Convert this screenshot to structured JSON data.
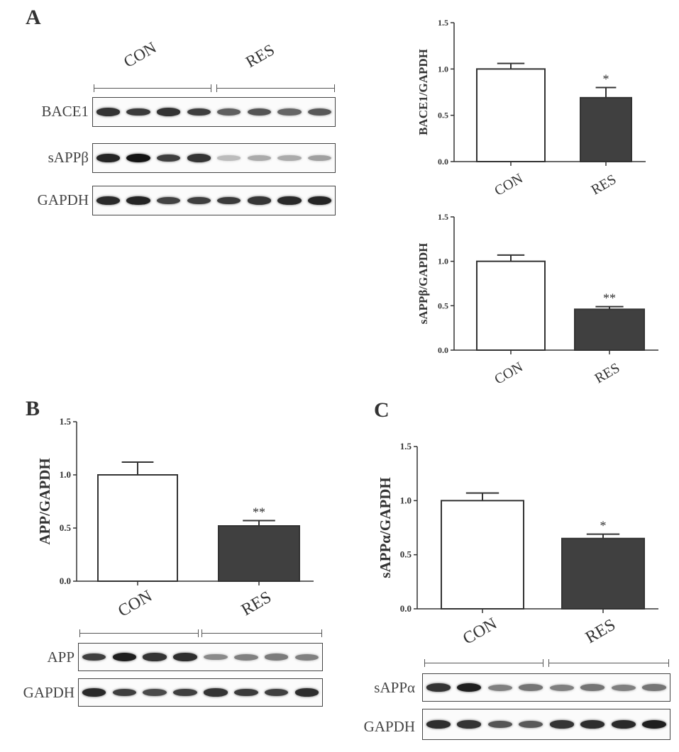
{
  "panels": {
    "a": "A",
    "b": "B",
    "c": "C"
  },
  "groups": [
    "CON",
    "RES"
  ],
  "colors": {
    "con_bar": "#ffffff",
    "res_bar": "#404040",
    "axis": "#333333"
  },
  "chart_data": [
    {
      "type": "bar",
      "ylabel": "BACE1/GAPDH",
      "categories": [
        "CON",
        "RES"
      ],
      "values": [
        1.0,
        0.69
      ],
      "errors": [
        0.06,
        0.11
      ],
      "significance": [
        "",
        "*"
      ],
      "ylim": [
        0,
        1.5
      ],
      "yticks": [
        "0.0",
        "0.5",
        "1.0",
        "1.5"
      ]
    },
    {
      "type": "bar",
      "ylabel": "sAPPβ/GAPDH",
      "categories": [
        "CON",
        "RES"
      ],
      "values": [
        1.0,
        0.46
      ],
      "errors": [
        0.07,
        0.03
      ],
      "significance": [
        "",
        "**"
      ],
      "ylim": [
        0,
        1.5
      ],
      "yticks": [
        "0.0",
        "0.5",
        "1.0",
        "1.5"
      ]
    },
    {
      "type": "bar",
      "ylabel": "APP/GAPDH",
      "categories": [
        "CON",
        "RES"
      ],
      "values": [
        1.0,
        0.52
      ],
      "errors": [
        0.12,
        0.05
      ],
      "significance": [
        "",
        "**"
      ],
      "ylim": [
        0,
        1.5
      ],
      "yticks": [
        "0.0",
        "0.5",
        "1.0",
        "1.5"
      ]
    },
    {
      "type": "bar",
      "ylabel": "sAPPα/GAPDH",
      "categories": [
        "CON",
        "RES"
      ],
      "values": [
        1.0,
        0.65
      ],
      "errors": [
        0.07,
        0.04
      ],
      "significance": [
        "",
        "*"
      ],
      "ylim": [
        0,
        1.5
      ],
      "yticks": [
        "0.0",
        "0.5",
        "1.0",
        "1.5"
      ]
    }
  ],
  "blots": {
    "a": [
      {
        "label": "BACE1",
        "intensity": [
          0.85,
          0.82,
          0.85,
          0.8,
          0.65,
          0.7,
          0.62,
          0.68
        ]
      },
      {
        "label": "sAPPβ",
        "intensity": [
          0.92,
          1.0,
          0.8,
          0.85,
          0.22,
          0.3,
          0.3,
          0.35
        ]
      },
      {
        "label": "GAPDH",
        "intensity": [
          0.9,
          0.92,
          0.78,
          0.8,
          0.82,
          0.84,
          0.9,
          0.92
        ]
      }
    ],
    "b": [
      {
        "label": "APP",
        "intensity": [
          0.8,
          0.95,
          0.85,
          0.88,
          0.45,
          0.5,
          0.52,
          0.5
        ]
      },
      {
        "label": "GAPDH",
        "intensity": [
          0.9,
          0.8,
          0.75,
          0.8,
          0.85,
          0.82,
          0.8,
          0.88
        ]
      }
    ],
    "c": [
      {
        "label": "sAPPα",
        "intensity": [
          0.85,
          0.95,
          0.5,
          0.55,
          0.5,
          0.55,
          0.5,
          0.55
        ]
      },
      {
        "label": "GAPDH",
        "intensity": [
          0.88,
          0.85,
          0.7,
          0.68,
          0.85,
          0.88,
          0.9,
          0.95
        ]
      }
    ]
  }
}
